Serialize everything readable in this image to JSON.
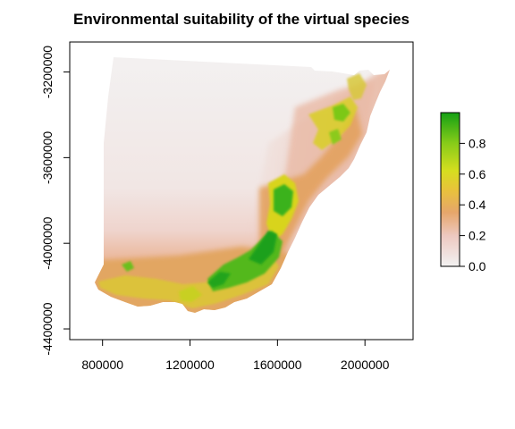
{
  "title": "Environmental suitability of the virtual species",
  "map": {
    "x_ticks": [
      "800000",
      "1200000",
      "1600000",
      "2000000"
    ],
    "y_ticks": [
      "-3200000",
      "-3600000",
      "-4000000",
      "-4400000"
    ],
    "x_tick_values": [
      800000,
      1200000,
      1600000,
      2000000
    ],
    "y_tick_values": [
      -3200000,
      -3600000,
      -4000000,
      -4400000
    ],
    "xlim": [
      650000,
      2220000
    ],
    "ylim": [
      -4450000,
      -3060000
    ]
  },
  "legend": {
    "labels": [
      "0.0",
      "0.2",
      "0.4",
      "0.6",
      "0.8"
    ],
    "values": [
      0.0,
      0.2,
      0.4,
      0.6,
      0.8
    ],
    "range": [
      0,
      1
    ],
    "colors": [
      "#f2f2f2",
      "#edc8c0",
      "#e6a66b",
      "#e8c33a",
      "#d6de1f",
      "#88cc19",
      "#14a014"
    ]
  }
}
